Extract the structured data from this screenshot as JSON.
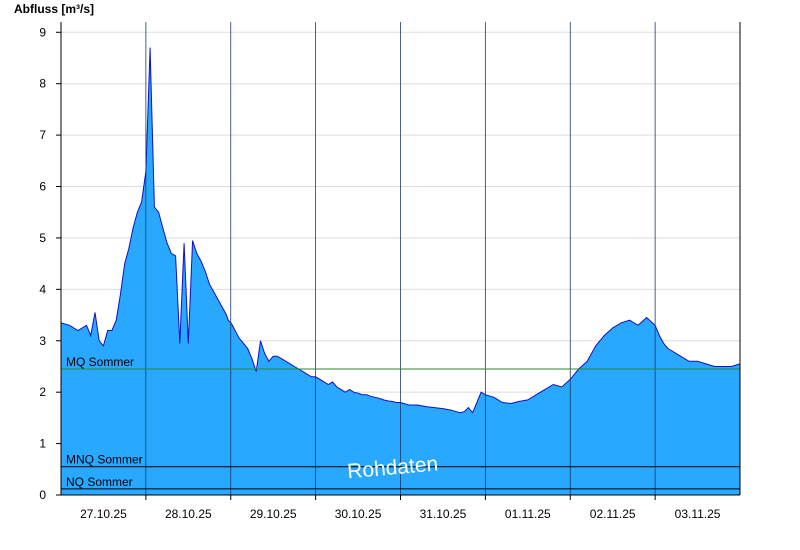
{
  "chart_data": {
    "type": "area",
    "ylabel": "Abfluss [m³/s]",
    "ylim": [
      0,
      9.2
    ],
    "yticks": [
      0,
      1,
      2,
      3,
      4,
      5,
      6,
      7,
      8,
      9
    ],
    "xticks": [
      "27.10.25",
      "28.10.25",
      "29.10.25",
      "30.10.25",
      "31.10.25",
      "01.11.25",
      "02.11.25",
      "03.11.25"
    ],
    "xlim_days": [
      -1.0,
      7.0
    ],
    "grid": true,
    "colors": {
      "fill": "#29a8ff",
      "line": "#1010c8",
      "mq": "#2a8a2a",
      "ref": "#000000",
      "grid": "#dddddd"
    },
    "reference_lines": [
      {
        "name": "MQ Sommer",
        "value": 2.45
      },
      {
        "name": "MNQ Sommer",
        "value": 0.55
      },
      {
        "name": "NQ Sommer",
        "value": 0.12
      }
    ],
    "watermark": "Rohdaten",
    "series": [
      {
        "x_days": [
          -1.0,
          -0.9,
          -0.8,
          -0.7,
          -0.65,
          -0.6,
          -0.55,
          -0.5,
          -0.45,
          -0.4,
          -0.35,
          -0.3,
          -0.25,
          -0.2,
          -0.15,
          -0.1,
          -0.05,
          0.0,
          0.05,
          0.1,
          0.15,
          0.2,
          0.25,
          0.3,
          0.35,
          0.4,
          0.45,
          0.5,
          0.55,
          0.6,
          0.65,
          0.7,
          0.75,
          0.8,
          0.85,
          0.9,
          0.95,
          0.97,
          1.0,
          1.02,
          1.05,
          1.1,
          1.15,
          1.2,
          1.25,
          1.3,
          1.35,
          1.4,
          1.45,
          1.5,
          1.55,
          1.6,
          1.65,
          1.7,
          1.75,
          1.8,
          1.85,
          1.9,
          1.95,
          2.0,
          2.05,
          2.1,
          2.15,
          2.2,
          2.25,
          2.3,
          2.35,
          2.4,
          2.45,
          2.5,
          2.55,
          2.6,
          2.65,
          2.7,
          2.75,
          2.8,
          2.85,
          2.9,
          2.95,
          3.0,
          3.1,
          3.2,
          3.3,
          3.4,
          3.5,
          3.6,
          3.7,
          3.75,
          3.8,
          3.85,
          3.9,
          3.95,
          4.0,
          4.1,
          4.2,
          4.3,
          4.4,
          4.5,
          4.6,
          4.7,
          4.8,
          4.9,
          5.0,
          5.1,
          5.2,
          5.3,
          5.4,
          5.5,
          5.6,
          5.7,
          5.8,
          5.9,
          6.0,
          6.05,
          6.1,
          6.15,
          6.2,
          6.25,
          6.3,
          6.35,
          6.4,
          6.5,
          6.6,
          6.7,
          6.8,
          6.9,
          7.0
        ],
        "values": [
          3.35,
          3.3,
          3.2,
          3.3,
          3.1,
          3.55,
          3.0,
          2.9,
          3.2,
          3.2,
          3.4,
          3.9,
          4.5,
          4.8,
          5.2,
          5.5,
          5.7,
          6.3,
          8.7,
          5.6,
          5.5,
          5.2,
          4.9,
          4.7,
          4.65,
          2.95,
          4.9,
          2.95,
          4.95,
          4.7,
          4.55,
          4.35,
          4.1,
          3.95,
          3.8,
          3.65,
          3.5,
          3.4,
          3.35,
          3.3,
          3.2,
          3.05,
          2.95,
          2.85,
          2.65,
          2.4,
          3.0,
          2.75,
          2.6,
          2.7,
          2.7,
          2.65,
          2.6,
          2.55,
          2.5,
          2.45,
          2.4,
          2.35,
          2.3,
          2.3,
          2.25,
          2.2,
          2.15,
          2.2,
          2.1,
          2.05,
          2.0,
          2.05,
          2.0,
          1.98,
          1.95,
          1.95,
          1.92,
          1.9,
          1.88,
          1.85,
          1.83,
          1.82,
          1.8,
          1.8,
          1.75,
          1.75,
          1.72,
          1.7,
          1.68,
          1.65,
          1.6,
          1.62,
          1.7,
          1.6,
          1.8,
          2.0,
          1.95,
          1.9,
          1.8,
          1.78,
          1.82,
          1.85,
          1.95,
          2.05,
          2.15,
          2.1,
          2.25,
          2.45,
          2.6,
          2.9,
          3.1,
          3.25,
          3.35,
          3.4,
          3.3,
          3.45,
          3.3,
          3.1,
          2.95,
          2.85,
          2.8,
          2.75,
          2.7,
          2.65,
          2.6,
          2.6,
          2.55,
          2.5,
          2.5,
          2.5,
          2.55
        ]
      }
    ]
  }
}
